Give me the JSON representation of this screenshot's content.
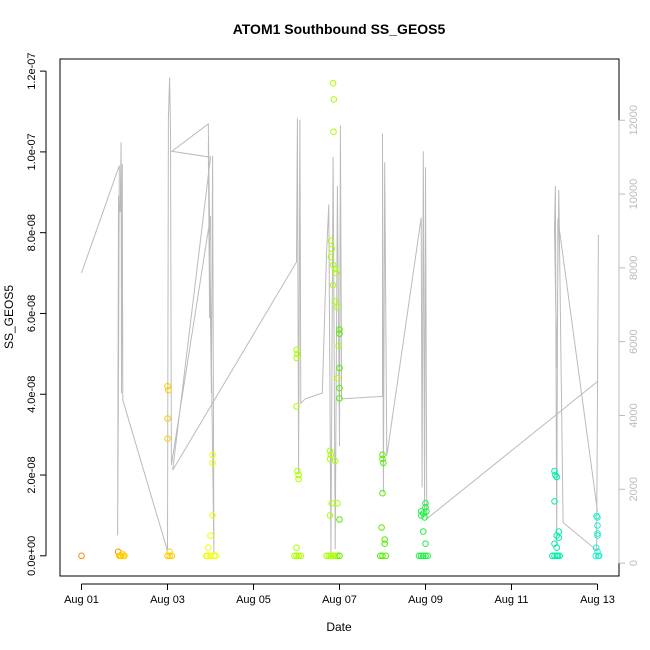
{
  "chart_data": {
    "type": "scatter",
    "title": "ATOM1 Southbound SS_GEOS5",
    "xlabel": "Date",
    "ylabel": "SS_GEOS5",
    "x_ticks": [
      "Aug 01",
      "Aug 03",
      "Aug 05",
      "Aug 07",
      "Aug 09",
      "Aug 11",
      "Aug 13"
    ],
    "x_tick_days": [
      1,
      3,
      5,
      7,
      9,
      11,
      13
    ],
    "xlim_days": [
      0.5,
      13.5
    ],
    "y_ticks": [
      "0.0e+00",
      "2.0e-08",
      "4.0e-08",
      "6.0e-08",
      "8.0e-08",
      "1.0e-07",
      "1.2e-07"
    ],
    "y_tick_values": [
      0,
      2e-08,
      4e-08,
      6e-08,
      8e-08,
      1e-07,
      1.2e-07
    ],
    "ylim": [
      -5e-09,
      1.23e-07
    ],
    "y2_ticks": [
      "0",
      "2000",
      "4000",
      "6000",
      "8000",
      "10000",
      "12000"
    ],
    "y2_tick_values": [
      0,
      2000,
      4000,
      6000,
      8000,
      10000,
      12000
    ],
    "y2lim": [
      -350,
      13660
    ],
    "colors": {
      "altitude_line": "#bbbbbb",
      "axis": "#000000",
      "right_axis": "#bbbbbb",
      "point_gradient": [
        "#ff8800",
        "#ffcc00",
        "#eeff00",
        "#aaff00",
        "#55ee00",
        "#22ee44",
        "#00eeaa",
        "#22eecc"
      ]
    },
    "series": [
      {
        "points": [
          [
            1.0,
            0
          ],
          [
            1.85,
            1e-09
          ],
          [
            1.9,
            0
          ],
          [
            1.95,
            5e-10
          ],
          [
            2.0,
            0
          ],
          [
            1.88,
            0
          ],
          [
            1.92,
            0
          ],
          [
            1.97,
            0
          ],
          [
            3.0,
            4.2e-08
          ],
          [
            3.02,
            4.1e-08
          ],
          [
            3.0,
            3.4e-08
          ],
          [
            3.0,
            2.9e-08
          ],
          [
            3.05,
            1e-09
          ],
          [
            3.0,
            0
          ],
          [
            3.1,
            0
          ],
          [
            3.05,
            0
          ],
          [
            3.9,
            0
          ],
          [
            3.95,
            2e-09
          ],
          [
            4.0,
            5e-09
          ],
          [
            4.05,
            1e-08
          ],
          [
            4.05,
            2.5e-08
          ],
          [
            4.05,
            2.3e-08
          ],
          [
            3.93,
            0
          ],
          [
            4.0,
            0
          ],
          [
            4.08,
            0
          ],
          [
            4.12,
            0
          ],
          [
            6.0,
            5.1e-08
          ],
          [
            6.02,
            5e-08
          ],
          [
            6.0,
            4.9e-08
          ],
          [
            6.0,
            3.7e-08
          ],
          [
            6.02,
            2.1e-08
          ],
          [
            6.05,
            2e-08
          ],
          [
            6.05,
            1.9e-08
          ],
          [
            6.0,
            2e-09
          ],
          [
            5.95,
            0
          ],
          [
            6.0,
            0
          ],
          [
            6.05,
            0
          ],
          [
            6.1,
            0
          ],
          [
            6.8,
            7.8e-08
          ],
          [
            6.82,
            7.6e-08
          ],
          [
            6.8,
            7.4e-08
          ],
          [
            6.85,
            7.2e-08
          ],
          [
            6.9,
            7.1e-08
          ],
          [
            6.92,
            7e-08
          ],
          [
            6.85,
            6.7e-08
          ],
          [
            6.9,
            6.3e-08
          ],
          [
            6.95,
            6.15e-08
          ],
          [
            7.0,
            5.6e-08
          ],
          [
            7.0,
            5.5e-08
          ],
          [
            6.98,
            5.2e-08
          ],
          [
            7.0,
            4.65e-08
          ],
          [
            6.95,
            4.4e-08
          ],
          [
            7.0,
            4.15e-08
          ],
          [
            7.0,
            3.9e-08
          ],
          [
            6.78,
            2.6e-08
          ],
          [
            6.8,
            2.5e-08
          ],
          [
            6.78,
            2.4e-08
          ],
          [
            6.9,
            2.35e-08
          ],
          [
            6.82,
            1.3e-08
          ],
          [
            6.95,
            1.3e-08
          ],
          [
            6.78,
            1e-08
          ],
          [
            7.0,
            9e-09
          ],
          [
            6.85,
            1.17e-07
          ],
          [
            6.87,
            1.13e-07
          ],
          [
            6.86,
            1.05e-07
          ],
          [
            6.7,
            0
          ],
          [
            6.75,
            0
          ],
          [
            6.8,
            0
          ],
          [
            6.85,
            0
          ],
          [
            6.9,
            0
          ],
          [
            6.95,
            0
          ],
          [
            7.0,
            0
          ],
          [
            8.0,
            2.5e-08
          ],
          [
            8.0,
            2.4e-08
          ],
          [
            8.02,
            2.3e-08
          ],
          [
            8.0,
            1.55e-08
          ],
          [
            7.98,
            7e-09
          ],
          [
            8.05,
            4e-09
          ],
          [
            8.05,
            3e-09
          ],
          [
            8.0,
            0
          ],
          [
            7.95,
            0
          ],
          [
            8.08,
            0
          ],
          [
            8.9,
            1.1e-08
          ],
          [
            8.95,
            1.05e-08
          ],
          [
            8.9,
            1e-08
          ],
          [
            8.98,
            9.5e-09
          ],
          [
            9.0,
            1.3e-08
          ],
          [
            9.0,
            1.2e-08
          ],
          [
            9.02,
            1.1e-08
          ],
          [
            8.95,
            6e-09
          ],
          [
            9.0,
            3e-09
          ],
          [
            8.85,
            0
          ],
          [
            8.9,
            0
          ],
          [
            8.95,
            0
          ],
          [
            9.0,
            0
          ],
          [
            9.05,
            0
          ],
          [
            12.0,
            2.1e-08
          ],
          [
            12.02,
            2e-08
          ],
          [
            12.05,
            1.95e-08
          ],
          [
            12.0,
            1.35e-08
          ],
          [
            12.05,
            5e-09
          ],
          [
            12.1,
            6e-09
          ],
          [
            12.1,
            4.5e-09
          ],
          [
            12.0,
            3e-09
          ],
          [
            12.05,
            2e-09
          ],
          [
            11.95,
            0
          ],
          [
            12.0,
            0
          ],
          [
            12.08,
            0
          ],
          [
            12.12,
            0
          ],
          [
            12.05,
            0
          ],
          [
            13.0,
            9.5e-09
          ],
          [
            12.98,
            9.8e-09
          ],
          [
            13.0,
            7.5e-09
          ],
          [
            13.0,
            5.5e-09
          ],
          [
            13.0,
            5e-09
          ],
          [
            12.97,
            2e-09
          ],
          [
            13.0,
            1e-09
          ],
          [
            13.02,
            0
          ],
          [
            12.96,
            0
          ],
          [
            13.04,
            0
          ]
        ]
      }
    ],
    "altitude_line": [
      [
        1.0,
        7860
      ],
      [
        1.88,
        10770
      ],
      [
        1.86,
        5020
      ],
      [
        1.84,
        750
      ],
      [
        1.86,
        9960
      ],
      [
        1.9,
        9520
      ],
      [
        1.92,
        11400
      ],
      [
        1.93,
        4600
      ],
      [
        1.95,
        10820
      ],
      [
        1.96,
        4420
      ],
      [
        3.0,
        330
      ],
      [
        3.02,
        12050
      ],
      [
        3.05,
        13160
      ],
      [
        3.07,
        11780
      ],
      [
        3.09,
        2660
      ],
      [
        4.0,
        9400
      ],
      [
        3.98,
        6640
      ],
      [
        3.95,
        11400
      ],
      [
        4.02,
        4600
      ],
      [
        4.05,
        11040
      ],
      [
        4.08,
        250
      ],
      [
        3.95,
        11900
      ],
      [
        3.1,
        11160
      ],
      [
        4.0,
        11000
      ],
      [
        3.12,
        2520
      ],
      [
        6.0,
        8160
      ],
      [
        6.02,
        12050
      ],
      [
        6.05,
        2440
      ],
      [
        6.08,
        12010
      ],
      [
        6.1,
        4330
      ],
      [
        6.2,
        4450
      ],
      [
        6.6,
        4610
      ],
      [
        6.7,
        8420
      ],
      [
        6.75,
        9720
      ],
      [
        6.8,
        280
      ],
      [
        6.85,
        11010
      ],
      [
        6.9,
        380
      ],
      [
        6.95,
        10220
      ],
      [
        7.0,
        3160
      ],
      [
        7.02,
        11860
      ],
      [
        7.05,
        4450
      ],
      [
        8.0,
        4520
      ],
      [
        8.0,
        11640
      ],
      [
        8.02,
        1910
      ],
      [
        8.05,
        10860
      ],
      [
        8.1,
        2900
      ],
      [
        8.9,
        9360
      ],
      [
        8.92,
        2050
      ],
      [
        8.95,
        11160
      ],
      [
        8.98,
        1400
      ],
      [
        9.0,
        10730
      ],
      [
        9.03,
        1200
      ],
      [
        13.0,
        4920
      ],
      [
        13.02,
        8900
      ],
      [
        12.98,
        350
      ],
      [
        12.2,
        1100
      ],
      [
        12.1,
        10110
      ],
      [
        12.05,
        5300
      ],
      [
        12.0,
        9080
      ],
      [
        12.02,
        10220
      ],
      [
        12.05,
        500
      ],
      [
        12.08,
        9340
      ],
      [
        13.0,
        1400
      ]
    ]
  }
}
